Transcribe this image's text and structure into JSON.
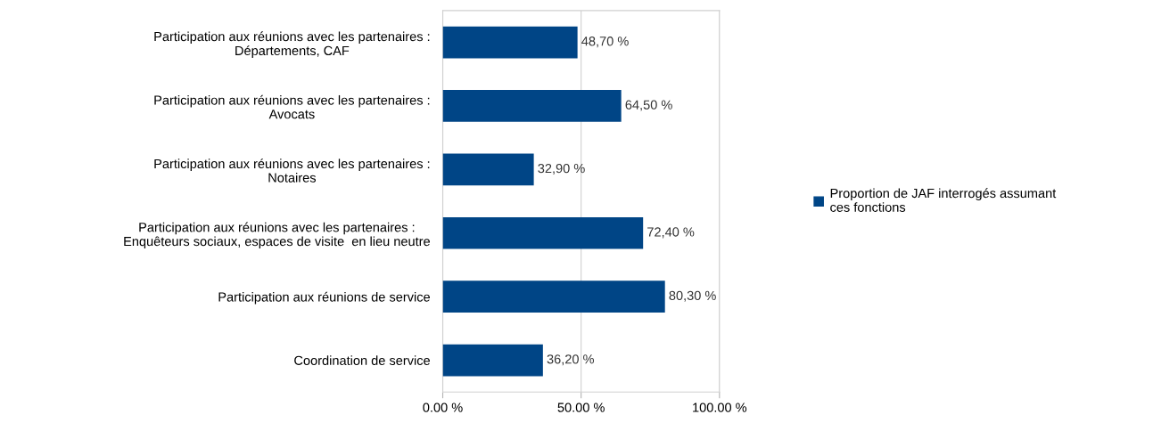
{
  "chart_data": {
    "type": "bar",
    "orientation": "horizontal",
    "categories": [
      "Participation aux réunions avec les partenaires :\nDépartements, CAF",
      "Participation aux réunions avec les partenaires :\nAvocats",
      "Participation aux réunions avec les partenaires :\nNotaires",
      "Participation aux réunions avec les partenaires :\nEnquêteurs sociaux, espaces de visite  en lieu neutre",
      "Participation aux réunions de service",
      "Coordination de service"
    ],
    "series": [
      {
        "name": "Proportion de JAF interrogés assumant\nces fonctions",
        "color": "#004586",
        "values": [
          48.7,
          64.5,
          32.9,
          72.4,
          80.3,
          36.2
        ],
        "value_labels": [
          "48,70 %",
          "64,50 %",
          "32,90 %",
          "72,40 %",
          "80,30 %",
          "36,20 %"
        ]
      }
    ],
    "xlim": [
      0,
      100
    ],
    "xticks": [
      {
        "value": 0,
        "label": "0.00 %"
      },
      {
        "value": 50,
        "label": "50.00 %"
      },
      {
        "value": 100,
        "label": "100.00 %"
      }
    ],
    "grid": "x",
    "legend": "right"
  }
}
